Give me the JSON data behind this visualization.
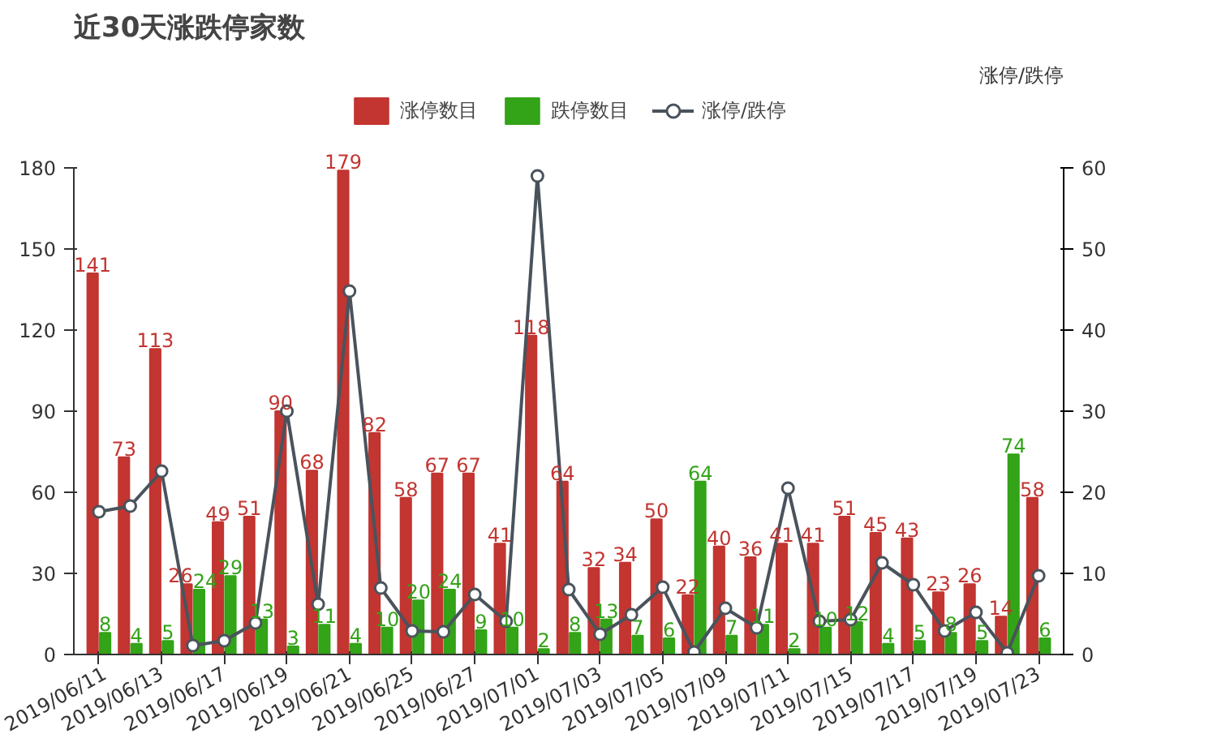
{
  "chart_data": {
    "type": "bar",
    "title": "近30天涨跌停家数",
    "y2label": "涨停/跌停",
    "categories": [
      "2019/06/11",
      null,
      "2019/06/13",
      null,
      "2019/06/17",
      null,
      "2019/06/19",
      null,
      "2019/06/21",
      null,
      "2019/06/25",
      null,
      "2019/06/27",
      null,
      "2019/07/01",
      null,
      "2019/07/03",
      null,
      "2019/07/05",
      null,
      "2019/07/09",
      null,
      "2019/07/11",
      null,
      "2019/07/15",
      null,
      "2019/07/17",
      null,
      "2019/07/19",
      null,
      "2019/07/23"
    ],
    "series": [
      {
        "name": "涨停数目",
        "color": "#c23531",
        "data_labels": true,
        "values": [
          141,
          73,
          113,
          26,
          49,
          51,
          90,
          68,
          179,
          82,
          58,
          67,
          67,
          41,
          118,
          64,
          32,
          34,
          50,
          22,
          40,
          36,
          41,
          41,
          51,
          45,
          43,
          23,
          26,
          14,
          58
        ]
      },
      {
        "name": "跌停数目",
        "color": "#33a318",
        "data_labels": true,
        "values": [
          8,
          4,
          5,
          24,
          29,
          13,
          3,
          11,
          4,
          10,
          20,
          24,
          9,
          10,
          2,
          8,
          13,
          7,
          6,
          64,
          7,
          11,
          2,
          10,
          12,
          4,
          5,
          8,
          5,
          74,
          6
        ]
      },
      {
        "name": "涨停/跌停",
        "type": "line",
        "axis": "y2",
        "color": "#4a535c",
        "marker": "circle",
        "values": [
          17.6,
          18.3,
          22.6,
          1.1,
          1.7,
          3.9,
          30,
          6.2,
          44.8,
          8.2,
          2.9,
          2.8,
          7.4,
          4.1,
          59,
          8,
          2.5,
          4.9,
          8.3,
          0.3,
          5.7,
          3.3,
          20.5,
          4.1,
          4.3,
          11.3,
          8.6,
          2.9,
          5.2,
          0.2,
          9.7
        ]
      }
    ],
    "ylim": [
      0,
      180
    ],
    "yticks": [
      0,
      30,
      60,
      90,
      120,
      150,
      180
    ],
    "y2lim": [
      0,
      60
    ],
    "y2ticks": [
      0,
      10,
      20,
      30,
      40,
      50,
      60
    ],
    "legend": "top"
  }
}
